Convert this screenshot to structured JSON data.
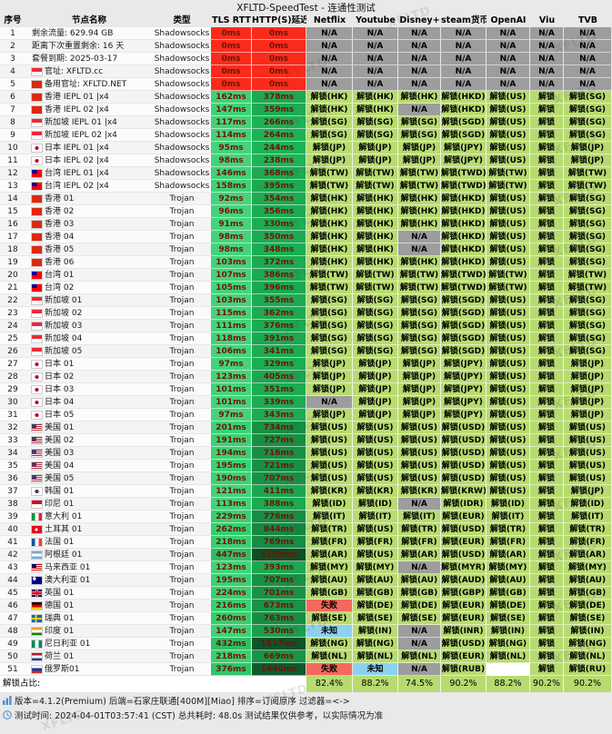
{
  "title": "XFLTD-SpeedTest - 连通性测试",
  "watermark": "XFLTD",
  "columns": [
    "序号",
    "节点名称",
    "类型",
    "TLS RTT",
    "HTTP(S)延迟",
    "Netflix",
    "Youtube",
    "Disney+",
    "steam货币",
    "OpenAI",
    "Viu",
    "TVB"
  ],
  "colors": {
    "unlock_bg": "#b7db70",
    "na_bg": "#9d9d9d",
    "fail_bg": "#f4695c",
    "unknown_bg": "#8bd2ef",
    "timeout_bg": "#fb2b1b",
    "latency_text": "#6d1505"
  },
  "rows": [
    {
      "no": 1,
      "flag": "",
      "name": "剩余流量: 629.94 GB",
      "type": "Shadowsocks",
      "tls": 0,
      "http": 0,
      "cells": [
        "N/A",
        "N/A",
        "N/A",
        "N/A",
        "N/A",
        "N/A",
        "N/A"
      ]
    },
    {
      "no": 2,
      "flag": "",
      "name": "距离下次重置剩余: 16 天",
      "type": "Shadowsocks",
      "tls": 0,
      "http": 0,
      "cells": [
        "N/A",
        "N/A",
        "N/A",
        "N/A",
        "N/A",
        "N/A",
        "N/A"
      ]
    },
    {
      "no": 3,
      "flag": "",
      "name": "套餐到期: 2025-03-17",
      "type": "Shadowsocks",
      "tls": 0,
      "http": 0,
      "cells": [
        "N/A",
        "N/A",
        "N/A",
        "N/A",
        "N/A",
        "N/A",
        "N/A"
      ]
    },
    {
      "no": 4,
      "flag": "sg",
      "name": "官址: XFLTD.cc",
      "type": "Shadowsocks",
      "tls": 0,
      "http": 0,
      "cells": [
        "N/A",
        "N/A",
        "N/A",
        "N/A",
        "N/A",
        "N/A",
        "N/A"
      ]
    },
    {
      "no": 5,
      "flag": "hk",
      "name": "备用官址: XFLTD.NET",
      "type": "Shadowsocks",
      "tls": 0,
      "http": 0,
      "cells": [
        "N/A",
        "N/A",
        "N/A",
        "N/A",
        "N/A",
        "N/A",
        "N/A"
      ]
    },
    {
      "no": 6,
      "flag": "hk",
      "name": "香港 IEPL 01 |x4",
      "type": "Shadowsocks",
      "tls": 162,
      "http": 378,
      "cells": [
        "解锁(HK)",
        "解锁(HK)",
        "解锁(HK)",
        "解锁(HKD)",
        "解锁(US)",
        "解锁",
        "解锁(SG)"
      ]
    },
    {
      "no": 7,
      "flag": "hk",
      "name": "香港 IEPL 02 |x4",
      "type": "Shadowsocks",
      "tls": 147,
      "http": 359,
      "cells": [
        "解锁(HK)",
        "解锁(HK)",
        "N/A",
        "解锁(HKD)",
        "解锁(US)",
        "解锁",
        "解锁(SG)"
      ]
    },
    {
      "no": 8,
      "flag": "sg",
      "name": "新加坡 IEPL 01 |x4",
      "type": "Shadowsocks",
      "tls": 117,
      "http": 266,
      "cells": [
        "解锁(SG)",
        "解锁(SG)",
        "解锁(SG)",
        "解锁(SGD)",
        "解锁(US)",
        "解锁",
        "解锁(SG)"
      ]
    },
    {
      "no": 9,
      "flag": "sg",
      "name": "新加坡 IEPL 02 |x4",
      "type": "Shadowsocks",
      "tls": 114,
      "http": 264,
      "cells": [
        "解锁(SG)",
        "解锁(SG)",
        "解锁(SG)",
        "解锁(SGD)",
        "解锁(US)",
        "解锁",
        "解锁(SG)"
      ]
    },
    {
      "no": 10,
      "flag": "jp",
      "name": "日本 IEPL 01 |x4",
      "type": "Shadowsocks",
      "tls": 95,
      "http": 244,
      "cells": [
        "解锁(JP)",
        "解锁(JP)",
        "解锁(JP)",
        "解锁(JPY)",
        "解锁(US)",
        "解锁",
        "解锁(JP)"
      ]
    },
    {
      "no": 11,
      "flag": "jp",
      "name": "日本 IEPL 02 |x4",
      "type": "Shadowsocks",
      "tls": 98,
      "http": 238,
      "cells": [
        "解锁(JP)",
        "解锁(JP)",
        "解锁(JP)",
        "解锁(JPY)",
        "解锁(US)",
        "解锁",
        "解锁(JP)"
      ]
    },
    {
      "no": 12,
      "flag": "tw",
      "name": "台湾 IEPL 01 |x4",
      "type": "Shadowsocks",
      "tls": 146,
      "http": 368,
      "cells": [
        "解锁(TW)",
        "解锁(TW)",
        "解锁(TW)",
        "解锁(TWD)",
        "解锁(TW)",
        "解锁",
        "解锁(TW)"
      ]
    },
    {
      "no": 13,
      "flag": "tw",
      "name": "台湾 IEPL 02 |x4",
      "type": "Shadowsocks",
      "tls": 158,
      "http": 395,
      "cells": [
        "解锁(TW)",
        "解锁(TW)",
        "解锁(TW)",
        "解锁(TWD)",
        "解锁(TW)",
        "解锁",
        "解锁(TW)"
      ]
    },
    {
      "no": 14,
      "flag": "hk",
      "name": "香港 01",
      "type": "Trojan",
      "tls": 92,
      "http": 354,
      "cells": [
        "解锁(HK)",
        "解锁(HK)",
        "解锁(HK)",
        "解锁(HKD)",
        "解锁(US)",
        "解锁",
        "解锁(SG)"
      ]
    },
    {
      "no": 15,
      "flag": "hk",
      "name": "香港 02",
      "type": "Trojan",
      "tls": 96,
      "http": 356,
      "cells": [
        "解锁(HK)",
        "解锁(HK)",
        "解锁(HK)",
        "解锁(HKD)",
        "解锁(US)",
        "解锁",
        "解锁(SG)"
      ]
    },
    {
      "no": 16,
      "flag": "hk",
      "name": "香港 03",
      "type": "Trojan",
      "tls": 91,
      "http": 330,
      "cells": [
        "解锁(HK)",
        "解锁(HK)",
        "解锁(HK)",
        "解锁(HKD)",
        "解锁(US)",
        "解锁",
        "解锁(SG)"
      ]
    },
    {
      "no": 17,
      "flag": "hk",
      "name": "香港 04",
      "type": "Trojan",
      "tls": 98,
      "http": 350,
      "cells": [
        "解锁(HK)",
        "解锁(HK)",
        "N/A",
        "解锁(HKD)",
        "解锁(US)",
        "解锁",
        "解锁(SG)"
      ]
    },
    {
      "no": 18,
      "flag": "hk",
      "name": "香港 05",
      "type": "Trojan",
      "tls": 98,
      "http": 348,
      "cells": [
        "解锁(HK)",
        "解锁(HK)",
        "N/A",
        "解锁(HKD)",
        "解锁(US)",
        "解锁",
        "解锁(SG)"
      ]
    },
    {
      "no": 19,
      "flag": "hk",
      "name": "香港 06",
      "type": "Trojan",
      "tls": 103,
      "http": 372,
      "cells": [
        "解锁(HK)",
        "解锁(HK)",
        "解锁(HK)",
        "解锁(HKD)",
        "解锁(US)",
        "解锁",
        "解锁(SG)"
      ]
    },
    {
      "no": 20,
      "flag": "tw",
      "name": "台湾 01",
      "type": "Trojan",
      "tls": 107,
      "http": 386,
      "cells": [
        "解锁(TW)",
        "解锁(TW)",
        "解锁(TW)",
        "解锁(TWD)",
        "解锁(TW)",
        "解锁",
        "解锁(TW)"
      ]
    },
    {
      "no": 21,
      "flag": "tw",
      "name": "台湾 02",
      "type": "Trojan",
      "tls": 105,
      "http": 396,
      "cells": [
        "解锁(TW)",
        "解锁(TW)",
        "解锁(TW)",
        "解锁(TWD)",
        "解锁(TW)",
        "解锁",
        "解锁(TW)"
      ]
    },
    {
      "no": 22,
      "flag": "sg",
      "name": "新加坡 01",
      "type": "Trojan",
      "tls": 103,
      "http": 355,
      "cells": [
        "解锁(SG)",
        "解锁(SG)",
        "解锁(SG)",
        "解锁(SGD)",
        "解锁(US)",
        "解锁",
        "解锁(SG)"
      ]
    },
    {
      "no": 23,
      "flag": "sg",
      "name": "新加坡 02",
      "type": "Trojan",
      "tls": 115,
      "http": 362,
      "cells": [
        "解锁(SG)",
        "解锁(SG)",
        "解锁(SG)",
        "解锁(SGD)",
        "解锁(US)",
        "解锁",
        "解锁(SG)"
      ]
    },
    {
      "no": 24,
      "flag": "sg",
      "name": "新加坡 03",
      "type": "Trojan",
      "tls": 111,
      "http": 376,
      "cells": [
        "解锁(SG)",
        "解锁(SG)",
        "解锁(SG)",
        "解锁(SGD)",
        "解锁(US)",
        "解锁",
        "解锁(SG)"
      ]
    },
    {
      "no": 25,
      "flag": "sg",
      "name": "新加坡 04",
      "type": "Trojan",
      "tls": 118,
      "http": 391,
      "cells": [
        "解锁(SG)",
        "解锁(SG)",
        "解锁(SG)",
        "解锁(SGD)",
        "解锁(US)",
        "解锁",
        "解锁(SG)"
      ]
    },
    {
      "no": 26,
      "flag": "sg",
      "name": "新加坡 05",
      "type": "Trojan",
      "tls": 106,
      "http": 341,
      "cells": [
        "解锁(SG)",
        "解锁(SG)",
        "解锁(SG)",
        "解锁(SGD)",
        "解锁(US)",
        "解锁",
        "解锁(SG)"
      ]
    },
    {
      "no": 27,
      "flag": "jp",
      "name": "日本 01",
      "type": "Trojan",
      "tls": 97,
      "http": 329,
      "cells": [
        "解锁(JP)",
        "解锁(JP)",
        "解锁(JP)",
        "解锁(JPY)",
        "解锁(US)",
        "解锁",
        "解锁(JP)"
      ]
    },
    {
      "no": 28,
      "flag": "jp",
      "name": "日本 02",
      "type": "Trojan",
      "tls": 123,
      "http": 405,
      "cells": [
        "解锁(JP)",
        "解锁(JP)",
        "解锁(JP)",
        "解锁(JPY)",
        "解锁(US)",
        "解锁",
        "解锁(JP)"
      ]
    },
    {
      "no": 29,
      "flag": "jp",
      "name": "日本 03",
      "type": "Trojan",
      "tls": 101,
      "http": 351,
      "cells": [
        "解锁(JP)",
        "解锁(JP)",
        "解锁(JP)",
        "解锁(JPY)",
        "解锁(US)",
        "解锁",
        "解锁(JP)"
      ]
    },
    {
      "no": 30,
      "flag": "jp",
      "name": "日本 04",
      "type": "Trojan",
      "tls": 101,
      "http": 339,
      "cells": [
        "N/A",
        "解锁(JP)",
        "解锁(JP)",
        "解锁(JPY)",
        "解锁(US)",
        "解锁",
        "解锁(JP)"
      ]
    },
    {
      "no": 31,
      "flag": "jp",
      "name": "日本 05",
      "type": "Trojan",
      "tls": 97,
      "http": 343,
      "cells": [
        "解锁(JP)",
        "解锁(JP)",
        "解锁(JP)",
        "解锁(JPY)",
        "解锁(US)",
        "解锁",
        "解锁(JP)"
      ]
    },
    {
      "no": 32,
      "flag": "us",
      "name": "美国 01",
      "type": "Trojan",
      "tls": 201,
      "http": 734,
      "cells": [
        "解锁(US)",
        "解锁(US)",
        "解锁(US)",
        "解锁(USD)",
        "解锁(US)",
        "解锁",
        "解锁(US)"
      ]
    },
    {
      "no": 33,
      "flag": "us",
      "name": "美国 02",
      "type": "Trojan",
      "tls": 191,
      "http": 727,
      "cells": [
        "解锁(US)",
        "解锁(US)",
        "解锁(US)",
        "解锁(USD)",
        "解锁(US)",
        "解锁",
        "解锁(US)"
      ]
    },
    {
      "no": 34,
      "flag": "us",
      "name": "美国 03",
      "type": "Trojan",
      "tls": 194,
      "http": 716,
      "cells": [
        "解锁(US)",
        "解锁(US)",
        "解锁(US)",
        "解锁(USD)",
        "解锁(US)",
        "解锁",
        "解锁(US)"
      ]
    },
    {
      "no": 35,
      "flag": "us",
      "name": "美国 04",
      "type": "Trojan",
      "tls": 195,
      "http": 721,
      "cells": [
        "解锁(US)",
        "解锁(US)",
        "解锁(US)",
        "解锁(USD)",
        "解锁(US)",
        "解锁",
        "解锁(US)"
      ]
    },
    {
      "no": 36,
      "flag": "us",
      "name": "美国 05",
      "type": "Trojan",
      "tls": 190,
      "http": 707,
      "cells": [
        "解锁(US)",
        "解锁(US)",
        "解锁(US)",
        "解锁(USD)",
        "解锁(US)",
        "解锁",
        "解锁(US)"
      ]
    },
    {
      "no": 37,
      "flag": "kr",
      "name": "韩国 01",
      "type": "Trojan",
      "tls": 121,
      "http": 411,
      "cells": [
        "解锁(KR)",
        "解锁(KR)",
        "解锁(KR)",
        "解锁(KRW)",
        "解锁(US)",
        "解锁",
        "解锁(JP)"
      ]
    },
    {
      "no": 38,
      "flag": "id",
      "name": "印尼 01",
      "type": "Trojan",
      "tls": 113,
      "http": 388,
      "cells": [
        "解锁(ID)",
        "解锁(ID)",
        "N/A",
        "解锁(IDR)",
        "解锁(ID)",
        "解锁",
        "解锁(ID)"
      ]
    },
    {
      "no": 39,
      "flag": "it",
      "name": "意大利 01",
      "type": "Trojan",
      "tls": 229,
      "http": 776,
      "cells": [
        "解锁(IT)",
        "解锁(IT)",
        "解锁(IT)",
        "解锁(EUR)",
        "解锁(IT)",
        "解锁",
        "解锁(IT)"
      ]
    },
    {
      "no": 40,
      "flag": "tr",
      "name": "土耳其 01",
      "type": "Trojan",
      "tls": 262,
      "http": 844,
      "cells": [
        "解锁(TR)",
        "解锁(US)",
        "解锁(TR)",
        "解锁(USD)",
        "解锁(TR)",
        "解锁",
        "解锁(TR)"
      ]
    },
    {
      "no": 41,
      "flag": "fr",
      "name": "法国 01",
      "type": "Trojan",
      "tls": 218,
      "http": 769,
      "cells": [
        "解锁(FR)",
        "解锁(FR)",
        "解锁(FR)",
        "解锁(EUR)",
        "解锁(FR)",
        "解锁",
        "解锁(FR)"
      ]
    },
    {
      "no": 42,
      "flag": "ar",
      "name": "阿根廷 01",
      "type": "Trojan",
      "tls": 447,
      "http": 1589,
      "cells": [
        "解锁(AR)",
        "解锁(US)",
        "解锁(AR)",
        "解锁(USD)",
        "解锁(AR)",
        "解锁",
        "解锁(AR)"
      ]
    },
    {
      "no": 43,
      "flag": "my",
      "name": "马来西亚 01",
      "type": "Trojan",
      "tls": 123,
      "http": 393,
      "cells": [
        "解锁(MY)",
        "解锁(MY)",
        "N/A",
        "解锁(MYR)",
        "解锁(MY)",
        "解锁",
        "解锁(MY)"
      ]
    },
    {
      "no": 44,
      "flag": "au",
      "name": "澳大利亚 01",
      "type": "Trojan",
      "tls": 195,
      "http": 707,
      "cells": [
        "解锁(AU)",
        "解锁(AU)",
        "解锁(AU)",
        "解锁(AUD)",
        "解锁(AU)",
        "解锁",
        "解锁(AU)"
      ]
    },
    {
      "no": 45,
      "flag": "gb",
      "name": "英国 01",
      "type": "Trojan",
      "tls": 224,
      "http": 701,
      "cells": [
        "解锁(GB)",
        "解锁(GB)",
        "解锁(GB)",
        "解锁(GBP)",
        "解锁(GB)",
        "解锁",
        "解锁(GB)"
      ]
    },
    {
      "no": 46,
      "flag": "de",
      "name": "德国 01",
      "type": "Trojan",
      "tls": 216,
      "http": 673,
      "cells": [
        "失败",
        "解锁(DE)",
        "解锁(DE)",
        "解锁(EUR)",
        "解锁(DE)",
        "解锁",
        "解锁(DE)"
      ]
    },
    {
      "no": 47,
      "flag": "se",
      "name": "瑞典 01",
      "type": "Trojan",
      "tls": 260,
      "http": 763,
      "cells": [
        "解锁(SE)",
        "解锁(SE)",
        "解锁(SE)",
        "解锁(EUR)",
        "解锁(SE)",
        "解锁",
        "解锁(SE)"
      ]
    },
    {
      "no": 48,
      "flag": "in",
      "name": "印度 01",
      "type": "Trojan",
      "tls": 147,
      "http": 530,
      "cells": [
        "未知",
        "解锁(IN)",
        "N/A",
        "解锁(INR)",
        "解锁(IN)",
        "解锁",
        "解锁(IN)"
      ]
    },
    {
      "no": 49,
      "flag": "ng",
      "name": "尼日利亚 01",
      "type": "Trojan",
      "tls": 432,
      "http": 1517,
      "cells": [
        "解锁(NG)",
        "解锁(NG)",
        "N/A",
        "解锁(USD)",
        "解锁(NG)",
        "解锁",
        "解锁(NG)"
      ]
    },
    {
      "no": 50,
      "flag": "nl",
      "name": "荷兰 01",
      "type": "Trojan",
      "tls": 218,
      "http": 669,
      "cells": [
        "解锁(NL)",
        "解锁(NL)",
        "解锁(NL)",
        "解锁(EUR)",
        "解锁(NL)",
        "解锁",
        "解锁(NL)"
      ]
    },
    {
      "no": 51,
      "flag": "ru",
      "name": "俄罗斯01",
      "type": "Trojan",
      "tls": 376,
      "http": 1440,
      "cells": [
        "失败",
        "未知",
        "N/A",
        "解锁(RUB)",
        "",
        "解锁",
        "解锁(RU)"
      ]
    }
  ],
  "ratio": {
    "label": "解锁占比:",
    "values": [
      "82.4%",
      "88.2%",
      "74.5%",
      "90.2%",
      "88.2%",
      "90.2%",
      "90.2%"
    ]
  },
  "footer1": "版本=4.1.2(Premium) 后端=石家庄联通[400M][Miao] 排序=订阅原序 过滤器=<->",
  "footer2": "测试时间: 2024-04-01T03:57:41 (CST) 总共耗时: 48.0s 测试结果仅供参考，以实际情况为准"
}
